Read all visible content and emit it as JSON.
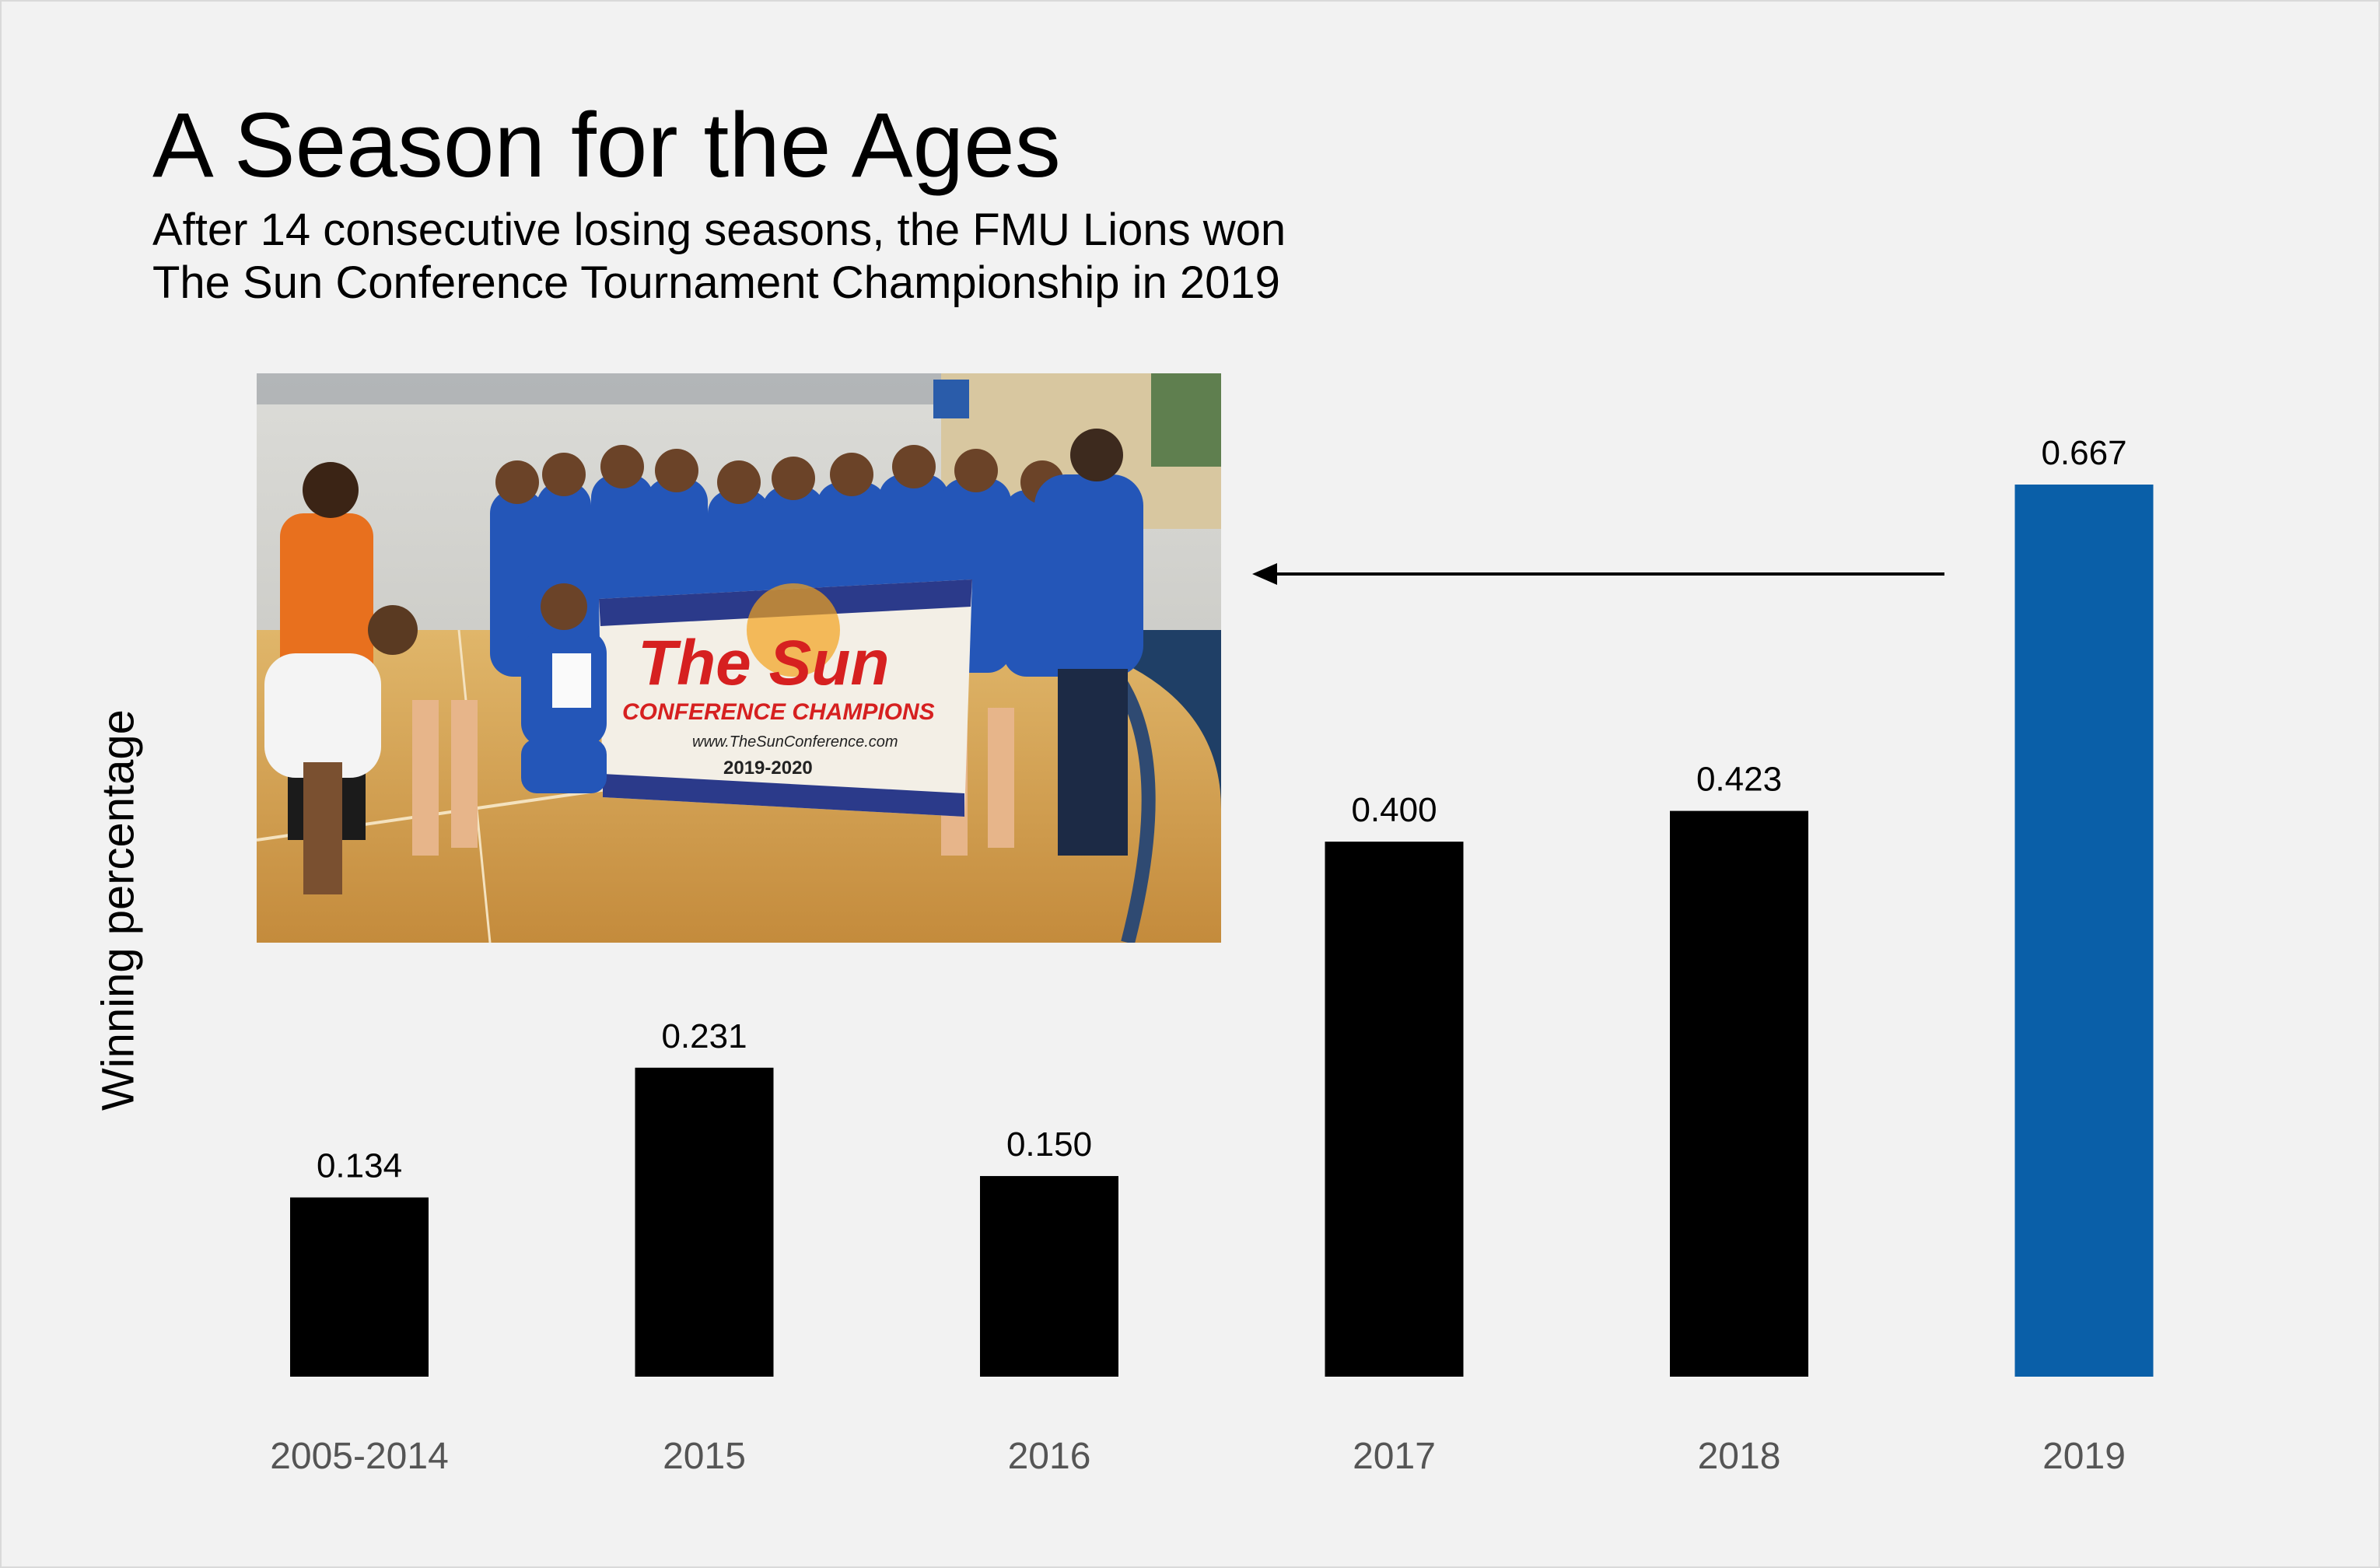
{
  "chart_data": {
    "type": "bar",
    "title": "A Season for the Ages",
    "subtitle_lines": [
      "After 14 consecutive losing seasons, the FMU Lions won",
      "The Sun Conference Tournament Championship in 2019"
    ],
    "ylabel": "Winning percentage",
    "xlabel": "",
    "categories": [
      "2005-2014",
      "2015",
      "2016",
      "2017",
      "2018",
      "2019"
    ],
    "values": [
      0.134,
      0.231,
      0.15,
      0.4,
      0.423,
      0.667
    ],
    "value_labels": [
      "0.134",
      "0.231",
      "0.150",
      "0.400",
      "0.423",
      "0.667"
    ],
    "ylim": [
      0,
      0.667
    ],
    "grid": false,
    "bar_colors": [
      "#000000",
      "#000000",
      "#000000",
      "#000000",
      "#000000",
      "#0a5fa8"
    ],
    "highlight": "2019",
    "annotation": {
      "type": "arrow",
      "from": "2019",
      "to": "photo",
      "photo_banner": {
        "line1": "The Sun",
        "line2": "CONFERENCE CHAMPIONS",
        "line3": "www.TheSunConference.com",
        "line4": "2019-2020"
      }
    }
  },
  "colors": {
    "background": "#f2f2f2",
    "bar": "#000000",
    "highlight": "#0a5fa8",
    "tick_label": "#555555"
  }
}
